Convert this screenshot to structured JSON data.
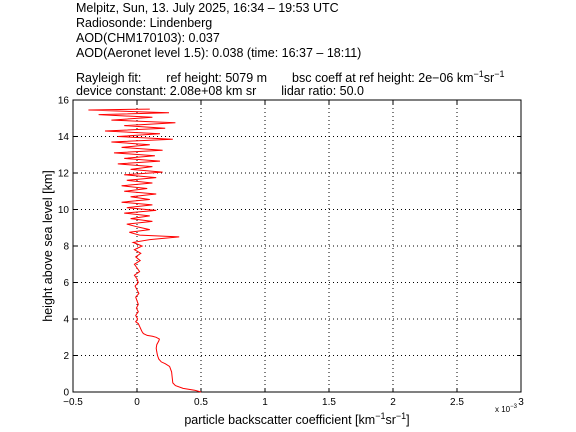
{
  "header": {
    "line1": "Melpitz, Sun, 13. July 2025, 16:34 – 19:53 UTC",
    "line2": "Radiosonde: Lindenberg",
    "line3": "AOD(CHM170103): 0.037",
    "line4": "AOD(Aeronet level 1.5): 0.038   (time: 16:37 – 18:11)",
    "line5a": "Rayleigh fit:",
    "line5b": "ref height: 5079 m",
    "line5c_prefix": "bsc coeff at ref height: 2e−06 km",
    "line5c_exp1": "−1",
    "line5c_mid": "sr",
    "line5c_exp2": "−1",
    "line6a": "device constant: 2.08e+08 km sr",
    "line6b": "lidar ratio: 50.0"
  },
  "chart_data": {
    "type": "line",
    "xlabel_prefix": "particle backscatter coefficient [km",
    "xlabel_exp1": "−1",
    "xlabel_mid": "sr",
    "xlabel_exp2": "−1",
    "xlabel_suffix": "]",
    "ylabel": "height above sea level [km]",
    "x_multiplier": "x 10",
    "x_multiplier_exp": "−3",
    "xlim": [
      -0.5,
      3
    ],
    "ylim": [
      0,
      16
    ],
    "xticks": [
      "−0.5",
      "0",
      "0.5",
      "1",
      "1.5",
      "2",
      "2.5",
      "3"
    ],
    "yticks": [
      "0",
      "2",
      "4",
      "6",
      "8",
      "10",
      "12",
      "14",
      "16"
    ],
    "grid": true,
    "line_color": "#ff0000",
    "series": [
      {
        "points": [
          [
            0.5,
            0.0
          ],
          [
            0.45,
            0.1
          ],
          [
            0.36,
            0.2
          ],
          [
            0.3,
            0.35
          ],
          [
            0.28,
            0.5
          ],
          [
            0.275,
            0.8
          ],
          [
            0.27,
            1.1
          ],
          [
            0.255,
            1.4
          ],
          [
            0.22,
            1.55
          ],
          [
            0.19,
            1.65
          ],
          [
            0.17,
            1.8
          ],
          [
            0.16,
            2.0
          ],
          [
            0.155,
            2.2
          ],
          [
            0.15,
            2.4
          ],
          [
            0.155,
            2.6
          ],
          [
            0.17,
            2.8
          ],
          [
            0.175,
            2.9
          ],
          [
            0.15,
            3.0
          ],
          [
            0.12,
            3.05
          ],
          [
            0.08,
            3.1
          ],
          [
            0.05,
            3.2
          ],
          [
            0.04,
            3.3
          ],
          [
            0.03,
            3.45
          ],
          [
            0.02,
            3.6
          ],
          [
            0.01,
            3.75
          ],
          [
            -0.01,
            3.85
          ],
          [
            0.005,
            4.0
          ],
          [
            -0.01,
            4.2
          ],
          [
            0.01,
            4.4
          ],
          [
            -0.005,
            4.6
          ],
          [
            0.01,
            4.8
          ],
          [
            0.0,
            5.0
          ],
          [
            -0.01,
            5.2
          ],
          [
            0.015,
            5.4
          ],
          [
            0.0,
            5.6
          ],
          [
            -0.015,
            5.8
          ],
          [
            0.01,
            6.0
          ],
          [
            0.0,
            6.2
          ],
          [
            -0.02,
            6.4
          ],
          [
            0.02,
            6.6
          ],
          [
            0.0,
            6.8
          ],
          [
            -0.02,
            7.0
          ],
          [
            0.025,
            7.2
          ],
          [
            -0.01,
            7.4
          ],
          [
            0.03,
            7.6
          ],
          [
            -0.02,
            7.8
          ],
          [
            0.04,
            8.0
          ],
          [
            -0.03,
            8.2
          ],
          [
            0.1,
            8.35
          ],
          [
            0.33,
            8.5
          ],
          [
            0.02,
            8.6
          ],
          [
            -0.06,
            8.75
          ],
          [
            0.1,
            8.9
          ],
          [
            0.0,
            9.05
          ],
          [
            -0.08,
            9.2
          ],
          [
            0.12,
            9.35
          ],
          [
            -0.05,
            9.5
          ],
          [
            0.1,
            9.65
          ],
          [
            -0.1,
            9.8
          ],
          [
            0.15,
            9.95
          ],
          [
            -0.08,
            10.1
          ],
          [
            0.12,
            10.25
          ],
          [
            -0.12,
            10.4
          ],
          [
            0.1,
            10.55
          ],
          [
            -0.05,
            10.7
          ],
          [
            0.15,
            10.85
          ],
          [
            -0.1,
            11.0
          ],
          [
            0.08,
            11.15
          ],
          [
            -0.12,
            11.3
          ],
          [
            0.12,
            11.45
          ],
          [
            -0.08,
            11.6
          ],
          [
            0.15,
            11.75
          ],
          [
            -0.1,
            11.9
          ],
          [
            0.2,
            12.05
          ],
          [
            -0.05,
            12.2
          ],
          [
            0.12,
            12.35
          ],
          [
            -0.15,
            12.5
          ],
          [
            0.18,
            12.65
          ],
          [
            -0.1,
            12.8
          ],
          [
            0.14,
            12.95
          ],
          [
            -0.18,
            13.1
          ],
          [
            0.2,
            13.25
          ],
          [
            -0.12,
            13.4
          ],
          [
            0.1,
            13.55
          ],
          [
            -0.2,
            13.7
          ],
          [
            0.28,
            13.85
          ],
          [
            -0.15,
            14.0
          ],
          [
            0.18,
            14.15
          ],
          [
            -0.25,
            14.3
          ],
          [
            0.22,
            14.45
          ],
          [
            -0.1,
            14.6
          ],
          [
            0.3,
            14.75
          ],
          [
            -0.2,
            14.9
          ],
          [
            0.12,
            15.05
          ],
          [
            -0.3,
            15.2
          ],
          [
            0.25,
            15.3
          ],
          [
            -0.38,
            15.45
          ],
          [
            0.1,
            15.5
          ]
        ]
      }
    ]
  }
}
